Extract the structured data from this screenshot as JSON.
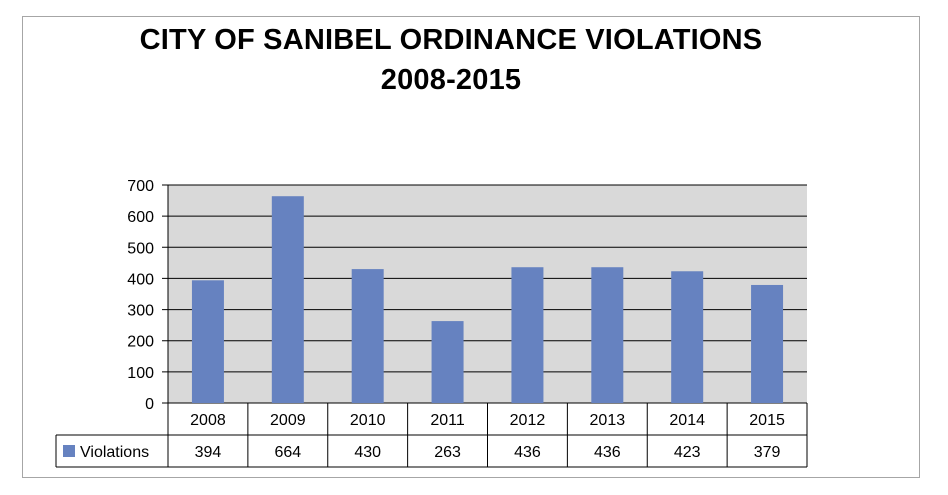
{
  "chart_data": {
    "type": "bar",
    "title": "CITY OF SANIBEL ORDINANCE VIOLATIONS",
    "subtitle": "2008-2015",
    "categories": [
      "2008",
      "2009",
      "2010",
      "2011",
      "2012",
      "2013",
      "2014",
      "2015"
    ],
    "series": [
      {
        "name": "Violations",
        "values": [
          394,
          664,
          430,
          263,
          436,
          436,
          423,
          379
        ],
        "color": "#6682c0"
      }
    ],
    "ylim": [
      0,
      700
    ],
    "yticks": [
      "0",
      "100",
      "200",
      "300",
      "400",
      "500",
      "600",
      "700"
    ],
    "grid": true,
    "plot_background": "#d9d9d9",
    "legend": "data-table",
    "data_table": true
  }
}
